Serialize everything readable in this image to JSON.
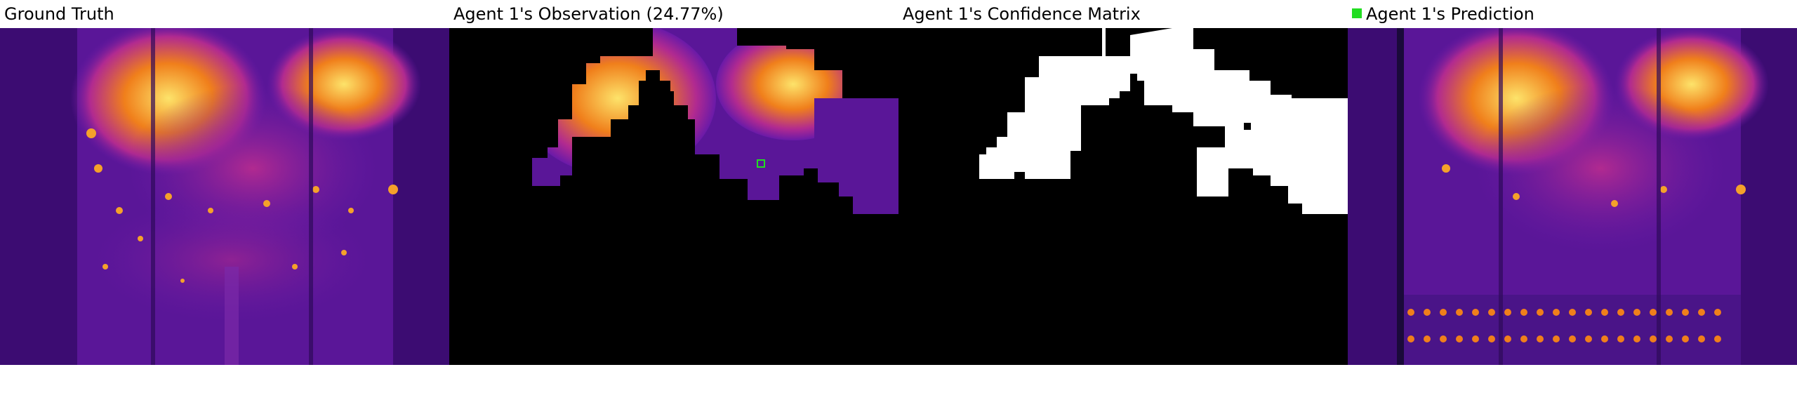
{
  "panels": {
    "ground_truth": {
      "title": "Ground Truth"
    },
    "observation": {
      "title": "Agent 1's Observation (24.77%)"
    },
    "confidence": {
      "title": "Agent 1's Confidence Matrix"
    },
    "prediction": {
      "title": "Agent 1's Prediction",
      "legend_color": "#22dd22"
    }
  },
  "colors": {
    "background_dark": "#3a0b6e",
    "mid_purple": "#6a1aa8",
    "magenta": "#b12a90",
    "orange": "#f07f1b",
    "yellow": "#fde36a",
    "mask_black": "#000000",
    "mask_white": "#ffffff",
    "agent_marker": "#22dd22"
  }
}
